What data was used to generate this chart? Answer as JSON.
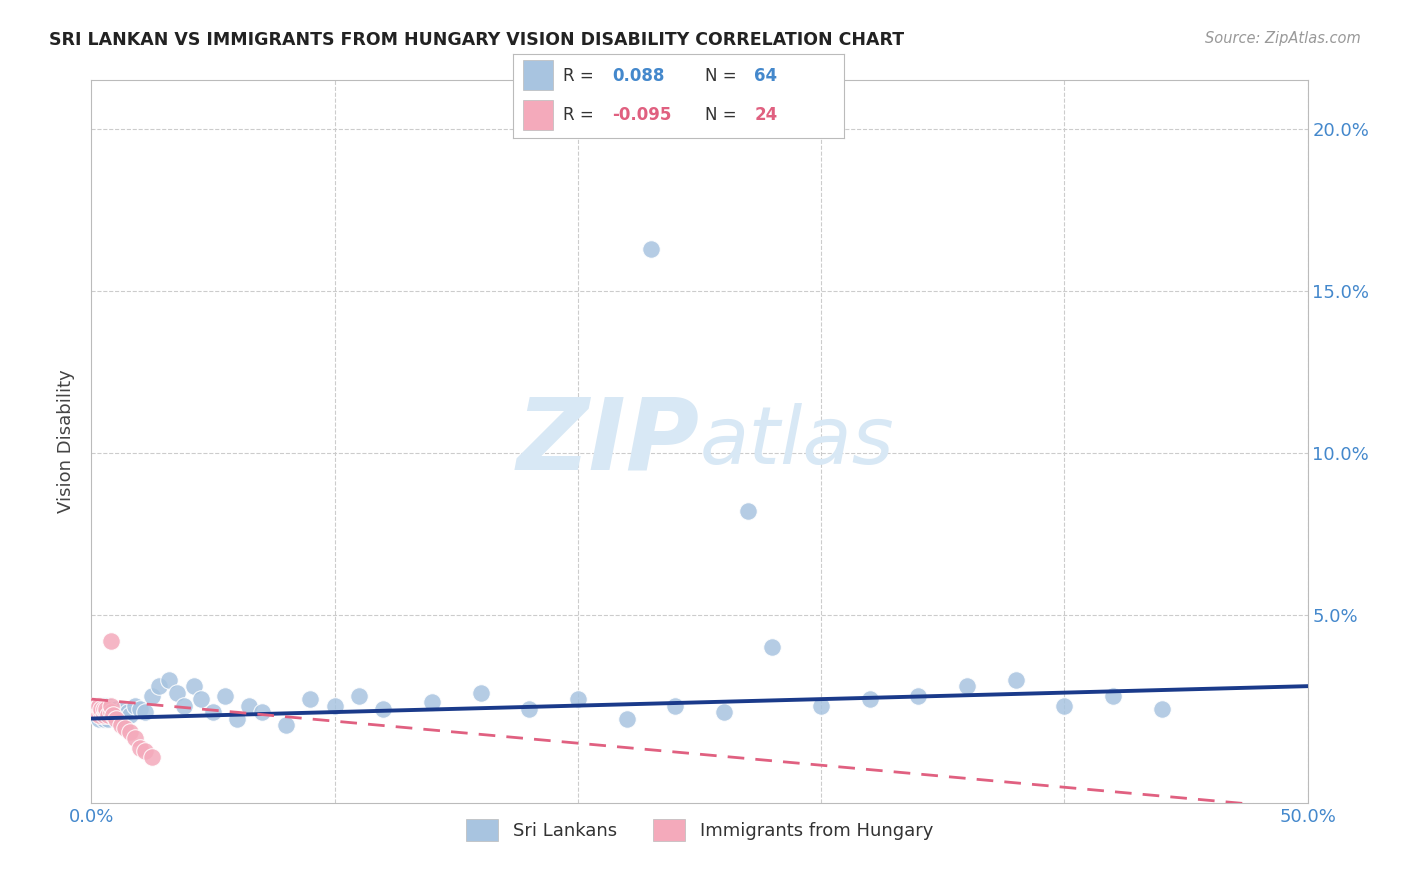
{
  "title": "SRI LANKAN VS IMMIGRANTS FROM HUNGARY VISION DISABILITY CORRELATION CHART",
  "source": "Source: ZipAtlas.com",
  "ylabel": "Vision Disability",
  "xlim": [
    0.0,
    0.5
  ],
  "ylim": [
    -0.008,
    0.215
  ],
  "yticks": [
    0.0,
    0.05,
    0.1,
    0.15,
    0.2
  ],
  "ytick_labels": [
    "",
    "5.0%",
    "10.0%",
    "15.0%",
    "20.0%"
  ],
  "xticks": [
    0.0,
    0.1,
    0.2,
    0.3,
    0.4,
    0.5
  ],
  "xtick_labels": [
    "0.0%",
    "",
    "",
    "",
    "",
    "50.0%"
  ],
  "blue_color": "#A8C4E0",
  "pink_color": "#F4AABB",
  "trend_blue": "#1A3A8A",
  "trend_pink": "#E06080",
  "background": "#FFFFFF",
  "grid_color": "#CCCCCC",
  "tick_color": "#4488CC",
  "title_color": "#222222",
  "ylabel_color": "#444444",
  "source_color": "#999999",
  "legend_text_color": "#333333",
  "legend_blue_val_color": "#4488CC",
  "legend_pink_val_color": "#E06080",
  "watermark_color": "#D8E8F5",
  "sri_lanka_N": 64,
  "hungary_N": 24,
  "sri_lanka_R": 0.088,
  "hungary_R": -0.095,
  "sl_trend_x0": 0.0,
  "sl_trend_x1": 0.5,
  "sl_trend_y0": 0.018,
  "sl_trend_y1": 0.028,
  "hu_trend_x0": 0.0,
  "hu_trend_x1": 0.5,
  "hu_trend_y0": 0.024,
  "hu_trend_y1": -0.01,
  "sl_x": [
    0.001,
    0.002,
    0.002,
    0.003,
    0.003,
    0.003,
    0.004,
    0.004,
    0.005,
    0.005,
    0.005,
    0.006,
    0.006,
    0.007,
    0.007,
    0.007,
    0.008,
    0.008,
    0.009,
    0.01,
    0.01,
    0.011,
    0.012,
    0.013,
    0.015,
    0.016,
    0.018,
    0.02,
    0.022,
    0.025,
    0.028,
    0.032,
    0.035,
    0.038,
    0.042,
    0.045,
    0.05,
    0.055,
    0.06,
    0.065,
    0.07,
    0.08,
    0.09,
    0.1,
    0.11,
    0.12,
    0.14,
    0.16,
    0.18,
    0.2,
    0.22,
    0.24,
    0.26,
    0.28,
    0.3,
    0.32,
    0.34,
    0.36,
    0.38,
    0.4,
    0.42,
    0.44,
    0.23,
    0.27
  ],
  "sl_y": [
    0.02,
    0.019,
    0.021,
    0.018,
    0.02,
    0.022,
    0.019,
    0.021,
    0.018,
    0.02,
    0.022,
    0.019,
    0.021,
    0.018,
    0.02,
    0.022,
    0.019,
    0.021,
    0.02,
    0.019,
    0.021,
    0.02,
    0.019,
    0.021,
    0.02,
    0.019,
    0.022,
    0.021,
    0.02,
    0.025,
    0.028,
    0.03,
    0.026,
    0.022,
    0.028,
    0.024,
    0.02,
    0.025,
    0.018,
    0.022,
    0.02,
    0.016,
    0.024,
    0.022,
    0.025,
    0.021,
    0.023,
    0.026,
    0.021,
    0.024,
    0.018,
    0.022,
    0.02,
    0.04,
    0.022,
    0.024,
    0.025,
    0.028,
    0.03,
    0.022,
    0.025,
    0.021,
    0.163,
    0.082
  ],
  "hu_x": [
    0.001,
    0.002,
    0.002,
    0.003,
    0.003,
    0.004,
    0.004,
    0.005,
    0.005,
    0.006,
    0.006,
    0.007,
    0.008,
    0.008,
    0.009,
    0.01,
    0.012,
    0.014,
    0.016,
    0.018,
    0.02,
    0.022,
    0.025,
    0.008
  ],
  "hu_y": [
    0.022,
    0.02,
    0.021,
    0.019,
    0.022,
    0.02,
    0.021,
    0.019,
    0.021,
    0.02,
    0.021,
    0.019,
    0.02,
    0.022,
    0.019,
    0.018,
    0.016,
    0.015,
    0.014,
    0.012,
    0.009,
    0.008,
    0.006,
    0.042
  ]
}
